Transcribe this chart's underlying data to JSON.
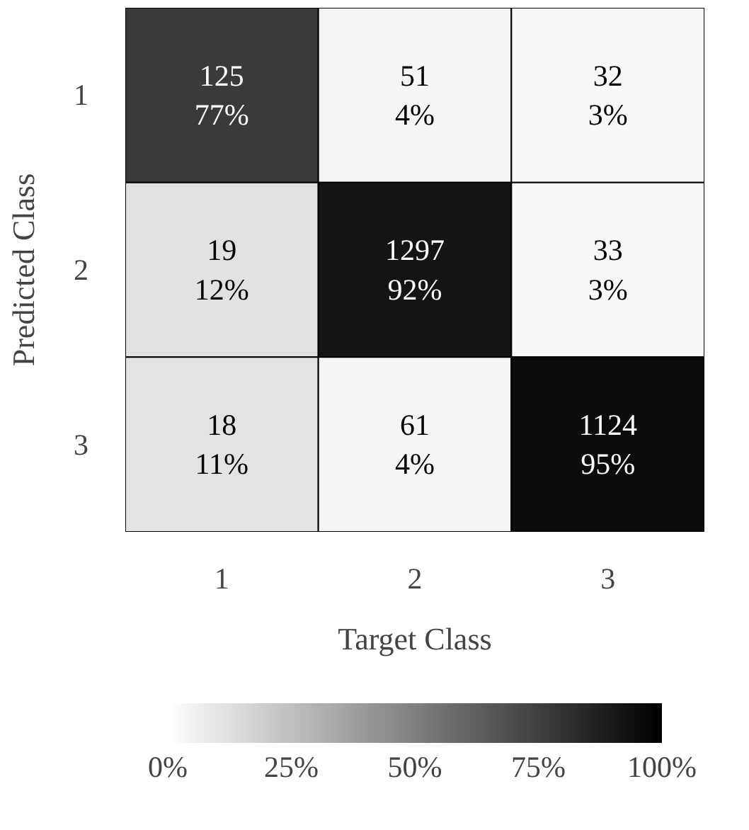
{
  "chart_data": {
    "type": "heatmap",
    "xlabel": "Target Class",
    "ylabel": "Predicted Class",
    "categories": [
      "1",
      "2",
      "3"
    ],
    "y_categories": [
      "1",
      "2",
      "3"
    ],
    "cells": [
      [
        77,
        4,
        3
      ],
      [
        12,
        92,
        3
      ],
      [
        11,
        4,
        95
      ]
    ],
    "cell_labels": [
      [
        "125\n77%",
        "51\n4%",
        "32\n3%"
      ],
      [
        "19\n12%",
        "1297\n92%",
        "33\n3%"
      ],
      [
        "18\n11%",
        "61\n4%",
        "1124\n95%"
      ]
    ],
    "clim": [
      0,
      100
    ],
    "cticks": [
      {
        "value": 0,
        "label": "0%"
      },
      {
        "value": 25,
        "label": "25%"
      },
      {
        "value": 50,
        "label": "50%"
      },
      {
        "value": 75,
        "label": "75%"
      },
      {
        "value": 100,
        "label": "100%"
      }
    ]
  }
}
